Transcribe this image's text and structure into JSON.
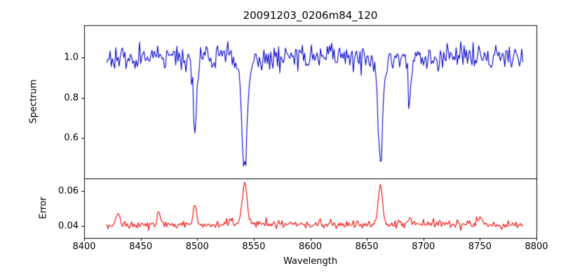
{
  "chart_data": {
    "type": "line",
    "title": "20091203_0206m84_120",
    "xlabel": "Wavelength",
    "xlim": [
      8400,
      8800
    ],
    "x_tick_values": [
      8400,
      8450,
      8500,
      8550,
      8600,
      8650,
      8700,
      8750,
      8800
    ],
    "x_tick_labels": [
      "8400",
      "8450",
      "8500",
      "8550",
      "8600",
      "8650",
      "8700",
      "8750",
      "8800"
    ],
    "x_data_start": 8420,
    "x_data_end": 8788,
    "x_step": 1,
    "grid": false,
    "legend": "none",
    "seed": 12345,
    "panels": [
      {
        "name": "spectrum",
        "ylabel": "Spectrum",
        "color": "#0000cc",
        "ylim": [
          0.4,
          1.16
        ],
        "y_tick_values": [
          0.6,
          0.8,
          1.0
        ],
        "y_tick_labels": [
          "0.6",
          "0.8",
          "1.0"
        ],
        "baseline": 1.0,
        "noise_sigma": 0.032,
        "features": [
          {
            "center": 8498,
            "amplitude": -0.33,
            "sigma": 1.3
          },
          {
            "center": 8498,
            "amplitude": -0.05,
            "sigma": 3.0
          },
          {
            "center": 8542,
            "amplitude": -0.45,
            "sigma": 2.0
          },
          {
            "center": 8542,
            "amplitude": -0.12,
            "sigma": 5.0
          },
          {
            "center": 8662,
            "amplitude": -0.42,
            "sigma": 1.8
          },
          {
            "center": 8662,
            "amplitude": -0.11,
            "sigma": 4.5
          },
          {
            "center": 8688,
            "amplitude": -0.22,
            "sigma": 1.3
          }
        ]
      },
      {
        "name": "error",
        "ylabel": "Error",
        "color": "#ee0000",
        "ylim": [
          0.033,
          0.067
        ],
        "y_tick_values": [
          0.04,
          0.06
        ],
        "y_tick_labels": [
          "0.04",
          "0.06"
        ],
        "baseline": 0.0403,
        "noise_sigma": 0.0011,
        "features": [
          {
            "center": 8430,
            "amplitude": 0.007,
            "sigma": 1.5
          },
          {
            "center": 8466,
            "amplitude": 0.008,
            "sigma": 1.2
          },
          {
            "center": 8498,
            "amplitude": 0.011,
            "sigma": 1.3
          },
          {
            "center": 8542,
            "amplitude": 0.024,
            "sigma": 2.2
          },
          {
            "center": 8662,
            "amplitude": 0.022,
            "sigma": 1.8
          },
          {
            "center": 8688,
            "amplitude": 0.004,
            "sigma": 1.2
          },
          {
            "center": 8750,
            "amplitude": 0.005,
            "sigma": 1.2
          }
        ]
      }
    ]
  }
}
